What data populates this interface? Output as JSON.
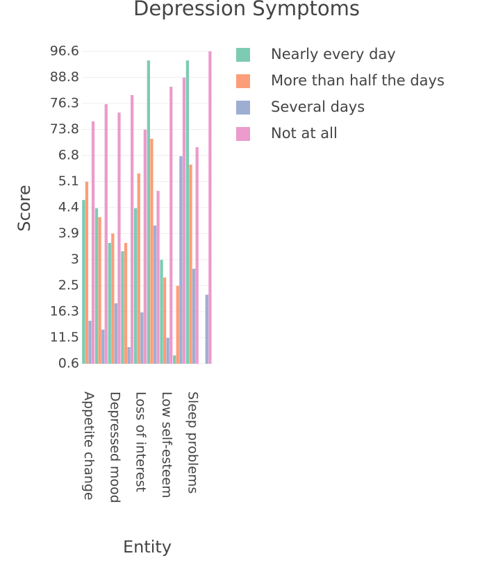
{
  "chart_data": {
    "type": "bar",
    "title": "Depression Symptoms",
    "x_label": "Entity",
    "y_label": "Score",
    "categories": [
      "Appetite change",
      null,
      "Depressed mood",
      null,
      "Loss of interest",
      null,
      "Low self-esteem",
      null,
      "Sleep problems",
      null
    ],
    "series": [
      {
        "name": "Nearly every day",
        "color": "#66c2a5",
        "values": [
          6.29,
          5.97,
          4.64,
          4.32,
          5.97,
          11.65,
          3.99,
          0.32,
          11.65,
          null
        ]
      },
      {
        "name": "More than half the days",
        "color": "#fc8d62",
        "values": [
          6.99,
          5.63,
          5.0,
          4.64,
          7.31,
          8.64,
          3.31,
          2.99,
          7.65,
          null
        ]
      },
      {
        "name": "Several days",
        "color": "#8da0cb",
        "values": [
          1.65,
          1.31,
          2.32,
          0.64,
          1.97,
          5.31,
          0.99,
          7.97,
          3.65,
          2.65
        ]
      },
      {
        "name": "Not at all",
        "color": "#e78ac3",
        "values": [
          9.31,
          9.97,
          9.65,
          10.32,
          8.99,
          6.64,
          10.64,
          10.99,
          8.32,
          12.0
        ]
      }
    ],
    "ylim": [
      0,
      12
    ],
    "yticks": [
      {
        "value": 0,
        "label": "0.6"
      },
      {
        "value": 1,
        "label": "11.5"
      },
      {
        "value": 2,
        "label": "16.3"
      },
      {
        "value": 3,
        "label": "2.5"
      },
      {
        "value": 4,
        "label": "3"
      },
      {
        "value": 5,
        "label": "3.9"
      },
      {
        "value": 6,
        "label": "4.4"
      },
      {
        "value": 7,
        "label": "5.1"
      },
      {
        "value": 8,
        "label": "6.8"
      },
      {
        "value": 9,
        "label": "73.8"
      },
      {
        "value": 10,
        "label": "76.3"
      },
      {
        "value": 11,
        "label": "88.8"
      },
      {
        "value": 12,
        "label": "96.6"
      }
    ],
    "grid": true,
    "legend": "right"
  }
}
